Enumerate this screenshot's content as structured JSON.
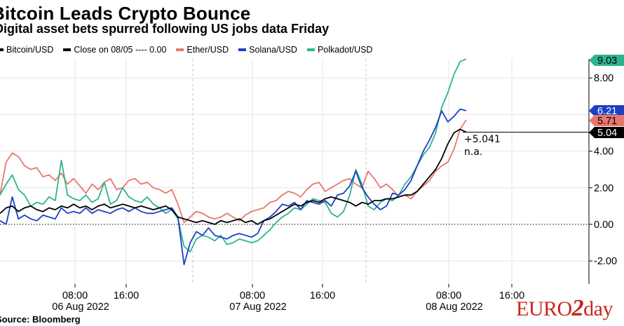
{
  "chart_data": {
    "type": "line",
    "title": "Bitcoin Leads Crypto Bounce",
    "subtitle": "Digital asset bets spurred following US jobs data Friday",
    "source": "Source: Bloomberg",
    "x_axis": {
      "tick_labels": [
        {
          "time": "08:00",
          "date": "06 Aug 2022"
        },
        {
          "time": "16:00",
          "date": ""
        },
        {
          "time": "08:00",
          "date": "07 Aug 2022"
        },
        {
          "time": "16:00",
          "date": ""
        },
        {
          "time": "08:00",
          "date": "08 Aug 2022"
        },
        {
          "time": "16:00",
          "date": ""
        }
      ]
    },
    "y_axis": {
      "ticks": [
        "-2.00",
        "0.00",
        "2.00",
        "4.00",
        "8.00"
      ],
      "range": [
        -3.3,
        10.5
      ],
      "unit": "%"
    },
    "grid": true,
    "legend_position": "top-left",
    "series": [
      {
        "name": "Bitcoin/USD",
        "color": "#000000",
        "last": "5.04",
        "values": [
          0.6,
          0.9,
          1.0,
          0.7,
          0.9,
          1.0,
          0.8,
          0.7,
          0.9,
          0.8,
          1.0,
          0.9,
          1.1,
          0.9,
          1.0,
          0.8,
          1.0,
          1.1,
          0.9,
          1.0,
          1.1,
          1.0,
          0.9,
          1.0,
          0.9,
          0.8,
          0.9,
          1.0,
          0.8,
          0.4,
          0.3,
          0.2,
          0.1,
          0.2,
          0.1,
          0.0,
          0.2,
          0.1,
          0.2,
          0.3,
          0.1,
          0.2,
          0.0,
          0.2,
          0.3,
          0.5,
          0.7,
          0.9,
          1.1,
          1.0,
          1.2,
          1.3,
          1.2,
          1.4,
          1.5,
          1.4,
          1.3,
          1.2,
          1.0,
          1.2,
          1.1,
          1.3,
          1.3,
          1.4,
          1.4,
          1.5,
          1.6,
          1.6,
          1.8,
          2.2,
          2.6,
          3.0,
          3.6,
          4.4,
          5.0,
          5.2,
          5.04
        ]
      },
      {
        "name": "Ether/USD",
        "color": "#e9776c",
        "last": "5.71",
        "values": [
          1.6,
          3.4,
          3.9,
          3.7,
          3.2,
          3.0,
          3.1,
          2.6,
          2.7,
          2.4,
          2.8,
          2.2,
          2.5,
          2.1,
          1.7,
          2.2,
          1.9,
          2.3,
          2.5,
          1.9,
          2.0,
          2.4,
          2.5,
          2.2,
          2.3,
          2.0,
          1.9,
          1.7,
          1.9,
          1.1,
          0.1,
          0.4,
          0.7,
          0.6,
          0.4,
          0.3,
          0.4,
          0.6,
          0.4,
          0.2,
          0.5,
          0.7,
          0.8,
          0.9,
          1.2,
          1.3,
          1.6,
          1.8,
          1.7,
          1.5,
          1.9,
          2.2,
          2.3,
          1.8,
          2.0,
          2.2,
          2.4,
          2.5,
          2.2,
          2.0,
          2.9,
          2.5,
          2.0,
          2.2,
          1.9,
          1.5,
          1.6,
          1.4,
          1.8,
          2.1,
          2.4,
          2.9,
          3.2,
          3.4,
          4.1,
          5.2,
          5.71
        ]
      },
      {
        "name": "Solana/USD",
        "color": "#1c3fc6",
        "last": "6.21",
        "values": [
          0.2,
          0.0,
          1.5,
          0.3,
          0.5,
          0.3,
          0.2,
          0.5,
          0.4,
          0.3,
          0.9,
          0.6,
          0.7,
          0.6,
          0.9,
          0.6,
          0.8,
          0.7,
          0.6,
          0.8,
          0.9,
          0.7,
          0.9,
          0.7,
          0.6,
          0.6,
          0.7,
          0.8,
          0.9,
          0.4,
          -2.2,
          -1.0,
          -0.4,
          -0.6,
          -0.2,
          -0.6,
          -0.7,
          -0.8,
          -0.6,
          -0.5,
          -0.6,
          -0.7,
          -0.5,
          0.2,
          0.4,
          0.7,
          1.1,
          1.0,
          1.2,
          0.8,
          1.3,
          1.2,
          1.1,
          1.3,
          1.0,
          1.6,
          1.7,
          2.1,
          2.9,
          2.0,
          1.5,
          1.1,
          0.8,
          1.0,
          1.7,
          1.6,
          1.9,
          2.4,
          3.2,
          4.0,
          4.6,
          5.3,
          6.2,
          5.6,
          5.9,
          6.3,
          6.21
        ]
      },
      {
        "name": "Polkadot/USD",
        "color": "#2cb48f",
        "last": "9.03",
        "values": [
          1.6,
          2.2,
          2.7,
          1.9,
          1.6,
          1.0,
          1.2,
          1.1,
          1.5,
          1.3,
          3.5,
          1.6,
          1.4,
          1.3,
          1.6,
          1.2,
          1.4,
          2.3,
          1.1,
          1.3,
          2.0,
          1.5,
          1.3,
          1.2,
          1.5,
          1.1,
          0.9,
          0.6,
          0.8,
          0.3,
          -1.2,
          -1.5,
          -0.8,
          -0.6,
          -0.7,
          -0.9,
          -0.6,
          -1.1,
          -1.0,
          -0.8,
          -0.9,
          -1.0,
          -0.9,
          -0.6,
          -0.3,
          0.1,
          0.4,
          0.6,
          0.9,
          0.8,
          1.1,
          1.4,
          1.3,
          1.2,
          0.6,
          0.4,
          0.7,
          1.6,
          3.0,
          2.2,
          1.0,
          0.8,
          1.2,
          1.4,
          1.3,
          1.6,
          2.2,
          2.6,
          3.2,
          3.8,
          4.2,
          5.0,
          6.4,
          7.2,
          8.2,
          8.9,
          9.03
        ]
      }
    ],
    "reference_line": {
      "name": "Close on 08/05 ---- 0.00",
      "value": 0.0,
      "color": "#000000"
    },
    "annotations": [
      {
        "text": "+5.041"
      },
      {
        "text": "n.a."
      }
    ]
  },
  "branding": {
    "prefix": "EURO",
    "middle": "2",
    "suffix": "day",
    "color": "#c7271c"
  }
}
